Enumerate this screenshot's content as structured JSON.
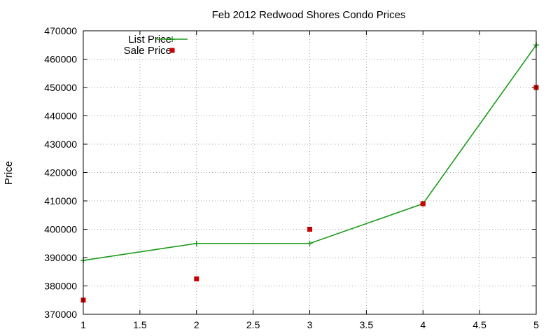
{
  "chart_data": {
    "type": "line",
    "title": "Feb 2012 Redwood Shores Condo Prices",
    "xlabel": "",
    "ylabel": "Price",
    "xlim": [
      1,
      5
    ],
    "ylim": [
      370000,
      470000
    ],
    "xticks": [
      1,
      1.5,
      2,
      2.5,
      3,
      3.5,
      4,
      4.5,
      5
    ],
    "xtick_labels": [
      "1",
      "1.5",
      "2",
      "2.5",
      "3",
      "3.5",
      "4",
      "4.5",
      "5"
    ],
    "yticks": [
      370000,
      380000,
      390000,
      400000,
      410000,
      420000,
      430000,
      440000,
      450000,
      460000,
      470000
    ],
    "ytick_labels": [
      "370000",
      "380000",
      "390000",
      "400000",
      "410000",
      "420000",
      "430000",
      "440000",
      "450000",
      "460000",
      "470000"
    ],
    "grid": true,
    "legend_position": "top-left",
    "series": [
      {
        "name": "List Price",
        "style": "line-with-cross-markers",
        "color": "#1a9a1a",
        "x": [
          1,
          2,
          3,
          4,
          5
        ],
        "y": [
          389000,
          395000,
          395000,
          409000,
          465000
        ]
      },
      {
        "name": "Sale Price",
        "style": "square-markers",
        "color": "#cc0000",
        "x": [
          1,
          2,
          3,
          4,
          5
        ],
        "y": [
          375000,
          382500,
          400000,
          409000,
          450000
        ]
      }
    ]
  }
}
